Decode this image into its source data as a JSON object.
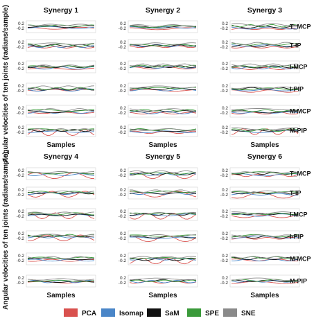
{
  "chart_data": {
    "type": "line",
    "ylabel": "Angular velocities of ten joints (radians/sample)",
    "xlabel": "Samples",
    "joints": [
      "T_MCP",
      "T-IP",
      "I-MCP",
      "I-PIP",
      "M-MCP",
      "M-PIP"
    ],
    "tick_labels": [
      "0.2",
      "-0.2"
    ],
    "ylim": [
      -0.3,
      0.3
    ],
    "legend": [
      {
        "name": "PCA",
        "color": "#d9514e"
      },
      {
        "name": "Isomap",
        "color": "#4a86c8"
      },
      {
        "name": "SaM",
        "color": "#111111"
      },
      {
        "name": "SPE",
        "color": "#3a9a3a"
      },
      {
        "name": "SNE",
        "color": "#8a8a8a"
      }
    ],
    "panels": [
      {
        "title": "Synergy 1"
      },
      {
        "title": "Synergy 2"
      },
      {
        "title": "Synergy 3"
      },
      {
        "title": "Synergy 4"
      },
      {
        "title": "Synergy 5"
      },
      {
        "title": "Synergy 6"
      }
    ]
  }
}
